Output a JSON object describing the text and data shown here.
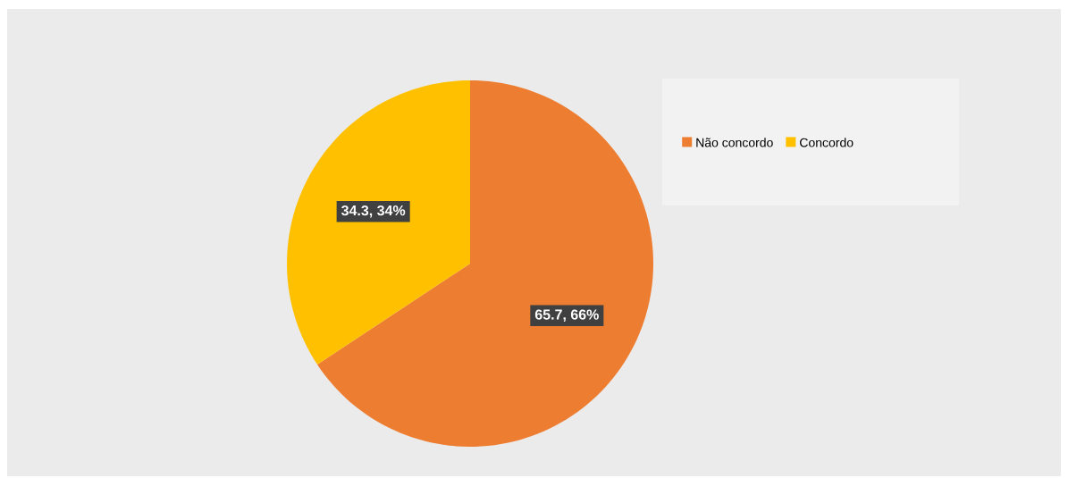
{
  "chart_data": {
    "type": "pie",
    "categories": [
      "Não concordo",
      "Concordo"
    ],
    "values": [
      65.7,
      34.3
    ],
    "colors": [
      "#ed7d31",
      "#ffc000"
    ],
    "value_labels": [
      "65.7, 66%",
      "34.3, 34%"
    ],
    "legend": "top right"
  }
}
